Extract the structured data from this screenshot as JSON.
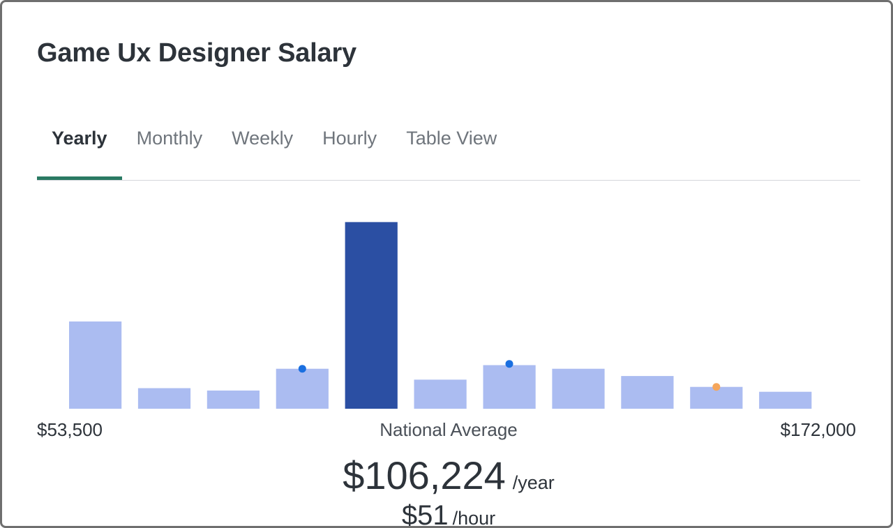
{
  "title": "Game Ux Designer Salary",
  "tabs": [
    {
      "label": "Yearly",
      "active": true
    },
    {
      "label": "Monthly",
      "active": false
    },
    {
      "label": "Weekly",
      "active": false
    },
    {
      "label": "Hourly",
      "active": false
    },
    {
      "label": "Table View",
      "active": false
    }
  ],
  "colors": {
    "accent": "#2a7a63",
    "bar": "#abbcf1",
    "bar_highlight": "#2b4fa3",
    "marker_blue": "#1a6fe0",
    "marker_orange": "#f5a65b"
  },
  "chart_data": {
    "type": "bar",
    "x_range": [
      "$53,500",
      "$172,000"
    ],
    "center_label": "National Average",
    "values": [
      36,
      8.5,
      7.5,
      16.5,
      77,
      12,
      18,
      16.5,
      13.5,
      9,
      7
    ],
    "highlight_index": 4,
    "ylim": [
      0,
      80
    ],
    "markers": [
      {
        "bar": 3,
        "level": 16.5,
        "color": "#1a6fe0"
      },
      {
        "bar": 6,
        "level": 18.5,
        "color": "#1a6fe0"
      },
      {
        "bar": 9,
        "level": 9,
        "color": "#f5a65b"
      }
    ]
  },
  "average": {
    "value": "$106,224",
    "unit": "/year",
    "hourly_value": "$51",
    "hourly_unit": "/hour"
  }
}
